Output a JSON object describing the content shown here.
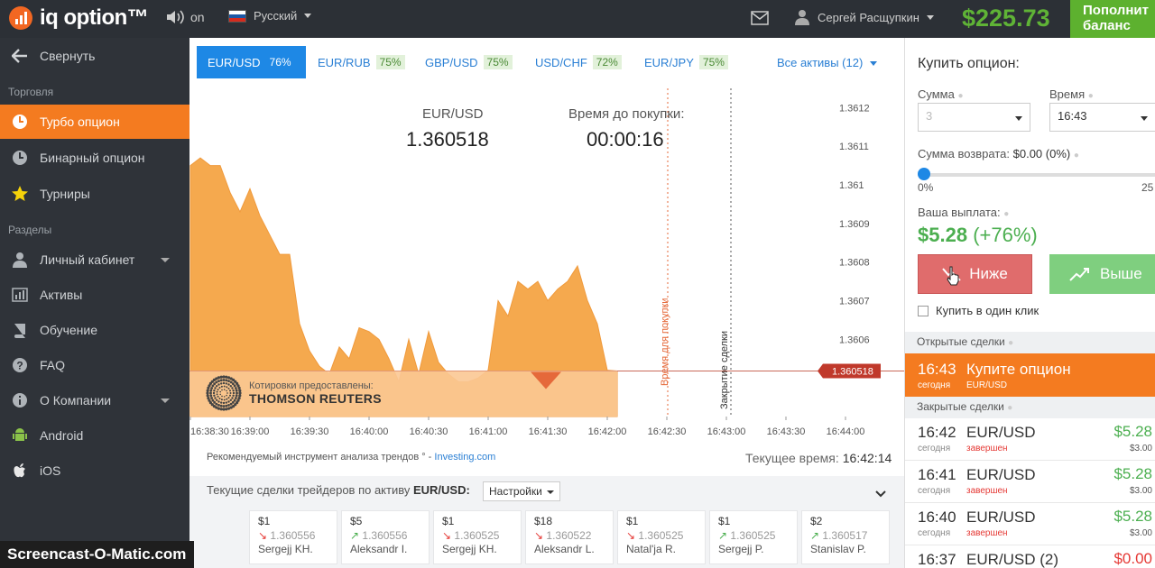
{
  "app": {
    "logo_text": "iq option™"
  },
  "topbar": {
    "sound_label": "on",
    "language": "Русский",
    "user_name": "Сергей Расщупкин",
    "balance": "$225.73",
    "deposit_line1": "Пополнит",
    "deposit_line2": "баланс"
  },
  "sidebar": {
    "collapse": "Свернуть",
    "section_trading": "Торговля",
    "turbo": "Турбо опцион",
    "binary": "Бинарный опцион",
    "tournaments": "Турниры",
    "section_sections": "Разделы",
    "cabinet": "Личный кабинет",
    "assets": "Активы",
    "learning": "Обучение",
    "faq": "FAQ",
    "company": "О Компании",
    "android": "Android",
    "ios": "iOS"
  },
  "tabs": [
    {
      "label": "EUR/USD",
      "pct": "76%"
    },
    {
      "label": "EUR/RUB",
      "pct": "75%"
    },
    {
      "label": "GBP/USD",
      "pct": "75%"
    },
    {
      "label": "USD/CHF",
      "pct": "72%"
    },
    {
      "label": "EUR/JPY",
      "pct": "75%"
    }
  ],
  "all_assets": "Все активы (12)",
  "chart_header": {
    "asset": "EUR/USD",
    "price": "1.360518",
    "timer_label": "Время до покупки:",
    "timer_value": "00:00:16"
  },
  "chart_data": {
    "type": "area",
    "x": [
      "16:38:30",
      "16:38:35",
      "16:38:40",
      "16:38:45",
      "16:38:50",
      "16:38:55",
      "16:39:00",
      "16:39:05",
      "16:39:10",
      "16:39:15",
      "16:39:20",
      "16:39:25",
      "16:39:30",
      "16:39:35",
      "16:39:40",
      "16:39:45",
      "16:39:50",
      "16:39:55",
      "16:40:00",
      "16:40:05",
      "16:40:10",
      "16:40:15",
      "16:40:20",
      "16:40:25",
      "16:40:30",
      "16:40:35",
      "16:40:40",
      "16:40:45",
      "16:40:50",
      "16:40:55",
      "16:41:00",
      "16:41:05",
      "16:41:10",
      "16:41:15",
      "16:41:20",
      "16:41:25",
      "16:41:30",
      "16:41:35",
      "16:41:40",
      "16:41:45",
      "16:41:50",
      "16:41:55",
      "16:42:00",
      "16:42:05"
    ],
    "series": [
      {
        "values": [
          1.36105,
          1.36107,
          1.36105,
          1.36105,
          1.36098,
          1.36093,
          1.36099,
          1.36092,
          1.36087,
          1.36082,
          1.36082,
          1.36064,
          1.36057,
          1.36053,
          1.36051,
          1.36058,
          1.36055,
          1.36063,
          1.36062,
          1.3606,
          1.36055,
          1.36049,
          1.3606,
          1.36051,
          1.36062,
          1.36054,
          1.36051,
          1.36049,
          1.36049,
          1.3605,
          1.36052,
          1.3607,
          1.36066,
          1.36075,
          1.36073,
          1.36075,
          1.3607,
          1.36073,
          1.36075,
          1.36079,
          1.3607,
          1.36064,
          1.36052,
          1.360518
        ]
      }
    ],
    "ylim": [
      1.3604,
      1.36125
    ],
    "y_ticks": [
      "1.3612",
      "1.3611",
      "1.361",
      "1.3609",
      "1.3608",
      "1.3607",
      "1.3606"
    ],
    "y_tick_values": [
      1.3612,
      1.3611,
      1.361,
      1.3609,
      1.3608,
      1.3607,
      1.3606
    ],
    "x_ticks": [
      "16:38:30",
      "16:39:00",
      "16:39:30",
      "16:40:00",
      "16:40:30",
      "16:41:00",
      "16:41:30",
      "16:42:00",
      "16:42:30",
      "16:43:00",
      "16:43:30",
      "16:44:00"
    ],
    "current_value": 1.360518,
    "current_label": "1.360518",
    "purchase_line_label": "Время для покупки",
    "close_line_label": "Закрытие сделки",
    "colors": {
      "fill": "#f5a94e",
      "line": "#f09a3c",
      "marker": "#c0392b"
    }
  },
  "provider": {
    "line1": "Котировки предоставлены:",
    "line2": "THOMSON REUTERS"
  },
  "recommend": {
    "text": "Рекомендуемый инструмент анализа трендов ° -",
    "link": "Investing.com"
  },
  "current_time": {
    "label": "Текущее время:",
    "value": "16:42:14"
  },
  "traders": {
    "head": "Текущие сделки трейдеров по активу",
    "asset": "EUR/USD:",
    "settings": "Настройки",
    "cards": [
      {
        "amount": "$1",
        "dir": "down",
        "rate": "1.360556",
        "name": "Sergejj KH."
      },
      {
        "amount": "$5",
        "dir": "up",
        "rate": "1.360556",
        "name": "Aleksandr I."
      },
      {
        "amount": "$1",
        "dir": "down",
        "rate": "1.360525",
        "name": "Sergejj KH."
      },
      {
        "amount": "$18",
        "dir": "down",
        "rate": "1.360522",
        "name": "Aleksandr L."
      },
      {
        "amount": "$1",
        "dir": "down",
        "rate": "1.360525",
        "name": "Natal'ja R."
      },
      {
        "amount": "$1",
        "dir": "up",
        "rate": "1.360525",
        "name": "Sergejj P."
      },
      {
        "amount": "$2",
        "dir": "up",
        "rate": "1.360517",
        "name": "Stanislav P."
      }
    ]
  },
  "buy": {
    "title": "Купить опцион:",
    "amount_label": "Сумма",
    "amount_value": "3",
    "time_label": "Время",
    "time_value": "16:43",
    "refund_label": "Сумма возврата:",
    "refund_value": "$0.00 (0%)",
    "slider_min": "0%",
    "slider_max": "25",
    "slider_value": 0,
    "payout_label": "Ваша выплата:",
    "payout_value": "$5.28",
    "payout_pct": "(+76%)",
    "lower": "Ниже",
    "higher": "Выше",
    "oneclick": "Купить в один клик"
  },
  "open_deals": {
    "head": "Открытые сделки",
    "time": "16:43",
    "day": "сегодня",
    "text": "Купите опцион",
    "asset": "EUR/USD"
  },
  "closed_deals": {
    "head": "Закрытые сделки",
    "rows": [
      {
        "time": "16:42",
        "day": "сегодня",
        "asset": "EUR/USD",
        "status": "завершен",
        "win": "$5.28",
        "invest": "$3.00"
      },
      {
        "time": "16:41",
        "day": "сегодня",
        "asset": "EUR/USD",
        "status": "завершен",
        "win": "$5.28",
        "invest": "$3.00"
      },
      {
        "time": "16:40",
        "day": "сегодня",
        "asset": "EUR/USD",
        "status": "завершен",
        "win": "$5.28",
        "invest": "$3.00"
      },
      {
        "time": "16:37",
        "day": "",
        "asset": "EUR/USD (2)",
        "status": "",
        "win": "$0.00",
        "invest": ""
      }
    ]
  },
  "watermark": "Screencast-O-Matic.com"
}
